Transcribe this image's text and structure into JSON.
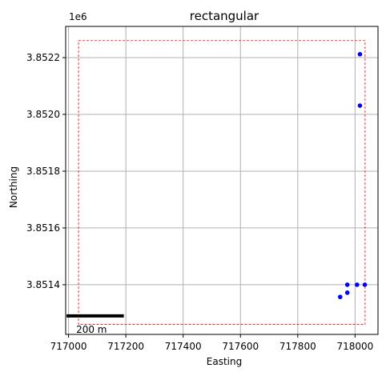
{
  "chart_data": {
    "type": "scatter",
    "title": "rectangular",
    "xlabel": "Easting",
    "ylabel": "Northing",
    "y_offset_label": "1e6",
    "xlim": [
      716990,
      718080
    ],
    "ylim": [
      3851225,
      3852310
    ],
    "x_ticks": [
      717000,
      717200,
      717400,
      717600,
      717800,
      718000
    ],
    "x_tick_labels": [
      "717000",
      "717200",
      "717400",
      "717600",
      "717800",
      "718000"
    ],
    "y_ticks": [
      3851400,
      3851600,
      3851800,
      3852000,
      3852200
    ],
    "y_tick_labels": [
      "3.8514",
      "3.8516",
      "3.8518",
      "3.8520",
      "3.8522"
    ],
    "grid": true,
    "series": [
      {
        "color": "#0000ff",
        "marker": "circle",
        "points": [
          {
            "x": 718017,
            "y": 3852212
          },
          {
            "x": 718017,
            "y": 3852031
          },
          {
            "x": 717973,
            "y": 3851400
          },
          {
            "x": 718007,
            "y": 3851400
          },
          {
            "x": 718034,
            "y": 3851400
          },
          {
            "x": 717973,
            "y": 3851372
          },
          {
            "x": 717948,
            "y": 3851357
          }
        ]
      }
    ],
    "bounding_box": {
      "color": "#ff0000",
      "style": "dashed",
      "x": [
        717035,
        718035
      ],
      "y": [
        3851260,
        3852260
      ]
    },
    "scale_bar": {
      "label": "200 m",
      "length": 200,
      "x_start": 716993,
      "y": 3851290,
      "color": "#000000"
    }
  }
}
